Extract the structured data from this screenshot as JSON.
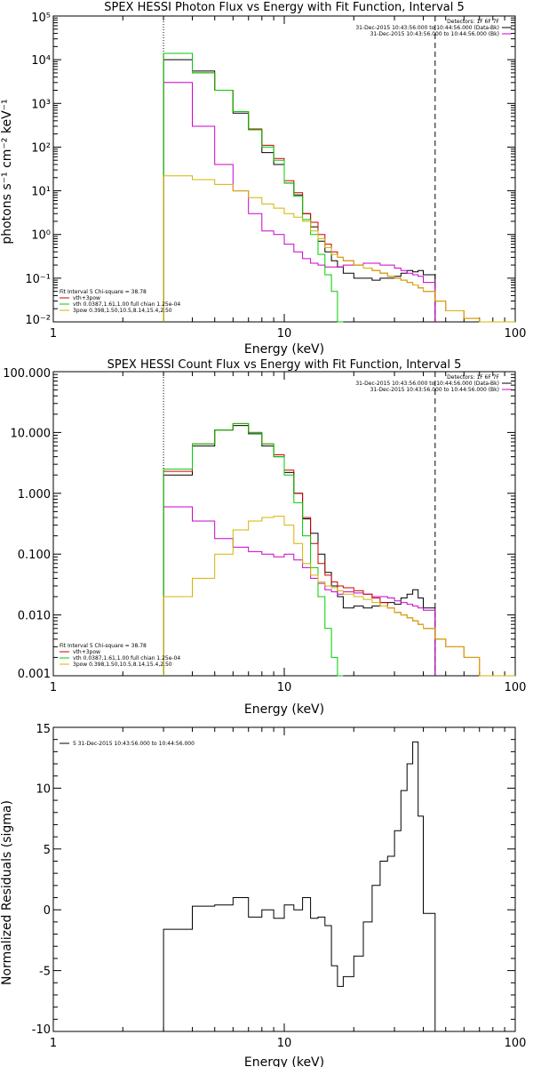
{
  "chart_data": [
    {
      "type": "line",
      "title": "SPEX HESSI Photon Flux vs Energy with Fit Function, Interval 5",
      "xlabel": "Energy (keV)",
      "ylabel": "photons s⁻¹ cm⁻² keV⁻¹",
      "xscale": "log",
      "yscale": "log",
      "xlim": [
        1,
        100
      ],
      "ylim": [
        0.01,
        100000
      ],
      "x_ticks": [
        1,
        10,
        100
      ],
      "x_tick_labels": [
        "1",
        "10",
        "100"
      ],
      "y_ticks": [
        0.01,
        0.1,
        1,
        10,
        100,
        1000,
        10000,
        100000
      ],
      "y_tick_labels": [
        "10⁻²",
        "10⁻¹",
        "10⁰",
        "10¹",
        "10²",
        "10³",
        "10⁴",
        "10⁵"
      ],
      "vlines": [
        {
          "x": 3.0,
          "style": "dotted"
        },
        {
          "x": 45.0,
          "style": "dashed"
        }
      ],
      "header": [
        "Detectors: 1F 6F 7F",
        "31-Dec-2015 10:43:56.000 to 10:44:56.000 (Data-Bk)",
        "31-Dec-2015 10:43:56.000 to 10:44:56.000 (Bk)"
      ],
      "header_colors": [
        "",
        "#000000",
        "#cc00cc"
      ],
      "legend_title": "Fit Interval 5   Chi-square = 38.78",
      "legend": [
        {
          "label": "vth+3pow",
          "color": "#cc0000"
        },
        {
          "label": "vth 0.0387,1.61,1.00  full chian 1.25e-04",
          "color": "#00cc00"
        },
        {
          "label": "3pow 0.398,1.50,10.5,8.14,15.4,2.50",
          "color": "#d4b400"
        }
      ],
      "edges": [
        3,
        4,
        5,
        6,
        7,
        8,
        9,
        10,
        11,
        12,
        13,
        14,
        15,
        16,
        17,
        18,
        20,
        22,
        24,
        26,
        28,
        30,
        32,
        34,
        36,
        38,
        40,
        45,
        50,
        60,
        70,
        100
      ],
      "series": [
        {
          "name": "Data-Bk",
          "color": "#000000",
          "values": [
            10000,
            5500,
            2000,
            600,
            250,
            75,
            40,
            15,
            8,
            3.0,
            1.5,
            0.7,
            0.4,
            0.25,
            0.18,
            0.13,
            0.1,
            0.1,
            0.09,
            0.1,
            0.1,
            0.11,
            0.13,
            0.15,
            0.14,
            0.15,
            0.12,
            null,
            null,
            null,
            null
          ]
        },
        {
          "name": "Bk",
          "color": "#cc00cc",
          "values": [
            3000,
            300,
            40,
            10,
            3,
            1.2,
            1.0,
            0.6,
            0.4,
            0.28,
            0.22,
            0.2,
            0.18,
            0.18,
            0.18,
            0.2,
            0.2,
            0.22,
            0.22,
            0.2,
            0.2,
            0.17,
            0.15,
            0.13,
            0.12,
            0.11,
            0.08,
            null,
            null,
            null,
            null
          ]
        },
        {
          "name": "vth+3pow",
          "color": "#cc0000",
          "values": [
            14000,
            5000,
            2000,
            650,
            260,
            110,
            55,
            17,
            9,
            3.0,
            1.9,
            1.0,
            0.6,
            0.4,
            0.3,
            0.25,
            0.2,
            0.17,
            0.15,
            0.13,
            0.11,
            0.1,
            0.09,
            0.08,
            0.07,
            0.06,
            0.05,
            0.03,
            0.018,
            0.012,
            0.005
          ]
        },
        {
          "name": "vth",
          "color": "#00cc00",
          "values": [
            14000,
            5000,
            2000,
            650,
            250,
            100,
            50,
            15,
            7.5,
            2.2,
            1.0,
            0.35,
            0.12,
            0.05,
            0.008,
            null,
            null,
            null,
            null,
            null,
            null,
            null,
            null,
            null,
            null,
            null,
            null,
            null,
            null,
            null,
            null
          ]
        },
        {
          "name": "3pow",
          "color": "#d4b400",
          "values": [
            22,
            18,
            14,
            10,
            7,
            5,
            4,
            3,
            2.5,
            2.0,
            1.2,
            0.8,
            0.5,
            0.35,
            0.3,
            0.25,
            0.2,
            0.17,
            0.15,
            0.13,
            0.11,
            0.1,
            0.09,
            0.08,
            0.07,
            0.06,
            0.05,
            0.03,
            0.018,
            0.012,
            0.005
          ]
        }
      ]
    },
    {
      "type": "line",
      "title": "SPEX HESSI Count Flux vs Energy with Fit Function, Interval 5",
      "xlabel": "Energy (keV)",
      "ylabel": "",
      "xscale": "log",
      "yscale": "log",
      "xlim": [
        1,
        100
      ],
      "ylim": [
        0.001,
        100
      ],
      "x_ticks": [
        1,
        10,
        100
      ],
      "x_tick_labels": [
        "1",
        "10",
        "100"
      ],
      "y_ticks": [
        0.001,
        0.01,
        0.1,
        1,
        10,
        100
      ],
      "y_tick_labels": [
        "0.001",
        "0.010",
        "0.100",
        "1.000",
        "10.000",
        "100.000"
      ],
      "vlines": [
        {
          "x": 3.0,
          "style": "dotted"
        },
        {
          "x": 45.0,
          "style": "dashed"
        }
      ],
      "header": [
        "Detectors: 1F 6F 7F",
        "31-Dec-2015 10:43:56.000 to 10:44:56.000 (Data-Bk)",
        "31-Dec-2015 10:43:56.000 to 10:44:56.000 (Bk)"
      ],
      "header_colors": [
        "",
        "#000000",
        "#cc00cc"
      ],
      "legend_title": "Fit Interval 5   Chi-square = 38.78",
      "legend": [
        {
          "label": "vth+3pow",
          "color": "#cc0000"
        },
        {
          "label": "vth 0.0387,1.61,1.00  full chian 1.25e-04",
          "color": "#00cc00"
        },
        {
          "label": "3pow 0.398,1.50,10.5,8.14,15.4,2.50",
          "color": "#d4b400"
        }
      ],
      "edges": [
        3,
        4,
        5,
        6,
        7,
        8,
        9,
        10,
        11,
        12,
        13,
        14,
        15,
        16,
        17,
        18,
        20,
        22,
        24,
        26,
        28,
        30,
        32,
        34,
        36,
        38,
        40,
        45,
        50,
        60,
        70,
        100
      ],
      "series": [
        {
          "name": "Data-Bk",
          "color": "#000000",
          "values": [
            2.0,
            6.0,
            11,
            13,
            9.5,
            6.0,
            4.0,
            2.2,
            1.0,
            0.38,
            0.22,
            0.1,
            0.05,
            0.03,
            0.02,
            0.013,
            0.014,
            0.013,
            0.014,
            0.016,
            0.016,
            0.015,
            0.019,
            0.022,
            0.026,
            0.019,
            0.013,
            null,
            null,
            null,
            null
          ]
        },
        {
          "name": "Bk",
          "color": "#cc00cc",
          "values": [
            0.6,
            0.35,
            0.18,
            0.13,
            0.11,
            0.1,
            0.09,
            0.1,
            0.08,
            0.06,
            0.04,
            0.033,
            0.026,
            0.024,
            0.022,
            0.024,
            0.023,
            0.022,
            0.02,
            0.02,
            0.019,
            0.017,
            0.016,
            0.015,
            0.014,
            0.013,
            0.012,
            null,
            null,
            null,
            null
          ]
        },
        {
          "name": "vth+3pow",
          "color": "#cc0000",
          "values": [
            2.3,
            6.5,
            11,
            14,
            10,
            6.5,
            4.3,
            2.4,
            1.0,
            0.4,
            0.15,
            0.07,
            0.045,
            0.035,
            0.03,
            0.028,
            0.025,
            0.022,
            0.019,
            0.016,
            0.013,
            0.011,
            0.01,
            0.009,
            0.008,
            0.007,
            0.006,
            0.004,
            0.003,
            0.002,
            0.001
          ]
        },
        {
          "name": "vth",
          "color": "#00cc00",
          "values": [
            2.5,
            6.5,
            11,
            14,
            10,
            6.5,
            4.0,
            2.0,
            0.7,
            0.2,
            0.06,
            0.02,
            0.006,
            0.002,
            0.0006,
            null,
            null,
            null,
            null,
            null,
            null,
            null,
            null,
            null,
            null,
            null,
            null,
            null,
            null,
            null,
            null
          ]
        },
        {
          "name": "3pow",
          "color": "#d4b400",
          "values": [
            0.02,
            0.04,
            0.1,
            0.25,
            0.35,
            0.4,
            0.42,
            0.3,
            0.15,
            0.07,
            0.045,
            0.035,
            0.03,
            0.028,
            0.025,
            0.022,
            0.02,
            0.018,
            0.016,
            0.014,
            0.013,
            0.011,
            0.01,
            0.009,
            0.008,
            0.007,
            0.006,
            0.004,
            0.003,
            0.002,
            0.001
          ]
        }
      ]
    },
    {
      "type": "line",
      "title": "",
      "xlabel": "Energy (keV)",
      "ylabel": "Normalized Residuals (sigma)",
      "xscale": "log",
      "yscale": "linear",
      "xlim": [
        1,
        100
      ],
      "ylim": [
        -10,
        15
      ],
      "x_ticks": [
        1,
        10,
        100
      ],
      "x_tick_labels": [
        "1",
        "10",
        "100"
      ],
      "y_ticks": [
        -10,
        -5,
        0,
        5,
        10,
        15
      ],
      "y_tick_labels": [
        "-10",
        "-5",
        "0",
        "5",
        "10",
        "15"
      ],
      "legend": [
        {
          "label": "5  31-Dec-2015 10:43:56.000 to 10:44:56.000",
          "color": "#000000"
        }
      ],
      "edges": [
        3,
        4,
        5,
        6,
        7,
        8,
        9,
        10,
        11,
        12,
        13,
        14,
        15,
        16,
        17,
        18,
        20,
        22,
        24,
        26,
        28,
        30,
        32,
        34,
        36,
        38,
        40,
        45
      ],
      "series": [
        {
          "name": "",
          "color": "#000000",
          "values": [
            -1.6,
            0.3,
            0.4,
            1.0,
            -0.6,
            0.0,
            -0.7,
            0.4,
            0.0,
            1.0,
            -0.7,
            -0.6,
            -1.3,
            -4.6,
            -6.3,
            -5.5,
            -3.8,
            -1.0,
            2.0,
            4.0,
            4.4,
            6.5,
            9.8,
            12.0,
            13.8,
            7.7,
            -0.3
          ]
        }
      ]
    }
  ]
}
